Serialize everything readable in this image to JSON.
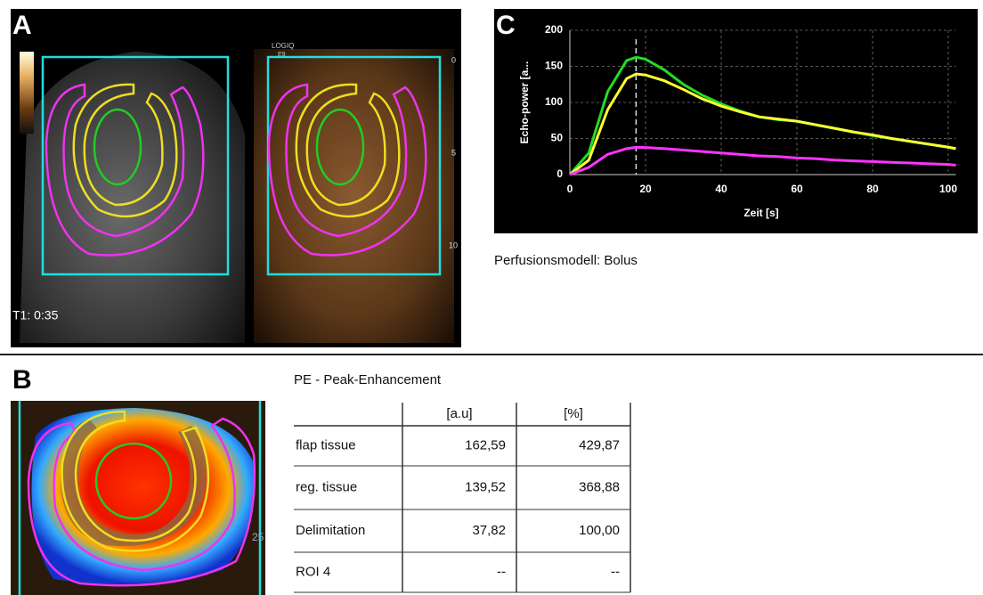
{
  "panels": {
    "a": "A",
    "b": "B",
    "c": "C"
  },
  "ultrasound": {
    "timestamp": "T1: 0:35",
    "device": [
      "LOGIQ",
      "E9"
    ],
    "depth_marks": [
      "0",
      "5",
      "10"
    ]
  },
  "parametric_map": {
    "depth_mark": "25"
  },
  "chart_data": {
    "type": "line",
    "ylabel": "Echo-power [a...",
    "xlabel": "Zeit [s]",
    "x": [
      0,
      5,
      10,
      15,
      17.5,
      20,
      25,
      30,
      35,
      40,
      45,
      50,
      55,
      60,
      65,
      70,
      75,
      80,
      85,
      90,
      95,
      100,
      102
    ],
    "series": [
      {
        "color": "#22dd22",
        "values": [
          0,
          30,
          115,
          158,
          162.59,
          160,
          145,
          125,
          110,
          98,
          88,
          80,
          76,
          74,
          69,
          64,
          59,
          54,
          50,
          46,
          42,
          38,
          36
        ]
      },
      {
        "color": "#ffff33",
        "values": [
          0,
          20,
          90,
          133,
          139.52,
          138,
          130,
          118,
          105,
          95,
          87,
          80,
          77,
          74,
          69,
          64,
          59,
          55,
          50,
          46,
          42,
          38,
          36
        ]
      },
      {
        "color": "#ff33ff",
        "values": [
          0,
          10,
          28,
          36,
          37.82,
          37.5,
          36,
          34,
          32,
          30,
          28,
          26,
          25,
          23,
          22,
          20,
          19,
          18,
          17,
          16,
          15,
          14,
          13
        ]
      }
    ],
    "xlim": [
      0,
      102
    ],
    "ylim": [
      0,
      200
    ],
    "xticks": [
      0,
      20,
      40,
      60,
      80,
      100
    ],
    "yticks": [
      0,
      50,
      100,
      150,
      200
    ],
    "grid": true,
    "marker_x": 17.5
  },
  "model_note": "Perfusionsmodell: Bolus",
  "table": {
    "title": "PE - Peak-Enhancement",
    "columns": [
      "[a.u]",
      "[%]"
    ],
    "rows": [
      [
        "flap tissue",
        "162,59",
        "429,87"
      ],
      [
        "reg. tissue",
        "139,52",
        "368,88"
      ],
      [
        "Delimitation",
        "37,82",
        "100,00"
      ],
      [
        "ROI 4",
        "--",
        "--"
      ]
    ]
  }
}
